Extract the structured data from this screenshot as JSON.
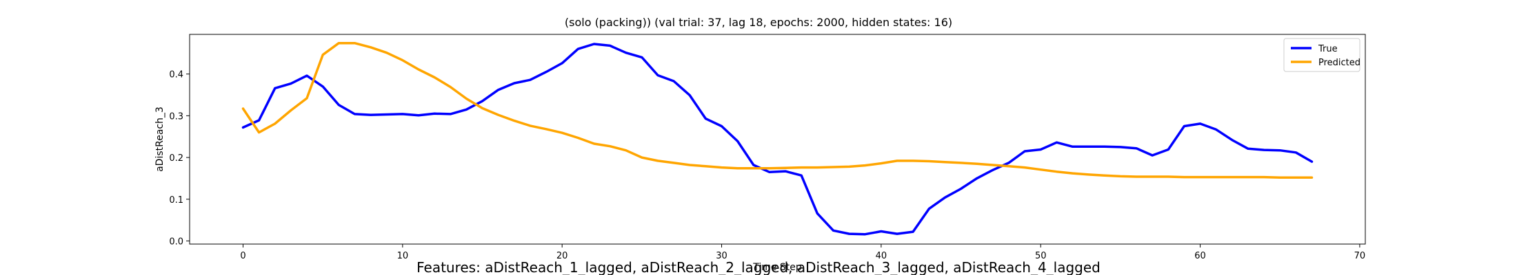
{
  "figure": {
    "footer_text": "Features: aDistReach_1_lagged, aDistReach_2_lagged, aDistReach_3_lagged, aDistReach_4_lagged"
  },
  "chart_data": {
    "type": "line",
    "title": "(solo (packing)) (val trial: 37, lag 18, epochs: 2000, hidden states: 16)",
    "xlabel": "Time Step",
    "ylabel": "aDistReach_3",
    "xlim": [
      -3.35,
      70.35
    ],
    "ylim": [
      -0.0075,
      0.495
    ],
    "xticks": [
      0,
      10,
      20,
      30,
      40,
      50,
      60,
      70
    ],
    "xtick_labels": [
      "0",
      "10",
      "20",
      "30",
      "40",
      "50",
      "60",
      "70"
    ],
    "yticks": [
      0.0,
      0.1,
      0.2,
      0.3,
      0.4
    ],
    "ytick_labels": [
      "0.0",
      "0.1",
      "0.2",
      "0.3",
      "0.4"
    ],
    "grid": false,
    "legend_position": "top-right",
    "x": [
      0,
      1,
      2,
      3,
      4,
      5,
      6,
      7,
      8,
      9,
      10,
      11,
      12,
      13,
      14,
      15,
      16,
      17,
      18,
      19,
      20,
      21,
      22,
      23,
      24,
      25,
      26,
      27,
      28,
      29,
      30,
      31,
      32,
      33,
      34,
      35,
      36,
      37,
      38,
      39,
      40,
      41,
      42,
      43,
      44,
      45,
      46,
      47,
      48,
      49,
      50,
      51,
      52,
      53,
      54,
      55,
      56,
      57,
      58,
      59,
      60,
      61,
      62,
      63,
      64,
      65,
      66,
      67
    ],
    "series": [
      {
        "name": "True",
        "color": "#0000ff",
        "values": [
          0.272,
          0.289,
          0.366,
          0.377,
          0.396,
          0.37,
          0.326,
          0.304,
          0.302,
          0.303,
          0.304,
          0.301,
          0.305,
          0.304,
          0.315,
          0.335,
          0.362,
          0.378,
          0.386,
          0.405,
          0.426,
          0.46,
          0.472,
          0.468,
          0.451,
          0.44,
          0.397,
          0.383,
          0.349,
          0.293,
          0.275,
          0.239,
          0.182,
          0.165,
          0.167,
          0.157,
          0.066,
          0.025,
          0.017,
          0.016,
          0.023,
          0.017,
          0.022,
          0.077,
          0.104,
          0.125,
          0.15,
          0.17,
          0.187,
          0.215,
          0.219,
          0.236,
          0.226,
          0.226,
          0.226,
          0.225,
          0.222,
          0.205,
          0.219,
          0.275,
          0.281,
          0.267,
          0.242,
          0.221,
          0.218,
          0.217,
          0.212,
          0.19
        ]
      },
      {
        "name": "Predicted",
        "color": "#ffa500",
        "values": [
          0.317,
          0.26,
          0.281,
          0.313,
          0.342,
          0.446,
          0.474,
          0.474,
          0.464,
          0.451,
          0.433,
          0.411,
          0.392,
          0.369,
          0.341,
          0.318,
          0.302,
          0.288,
          0.276,
          0.268,
          0.259,
          0.247,
          0.233,
          0.227,
          0.217,
          0.2,
          0.192,
          0.187,
          0.182,
          0.179,
          0.176,
          0.174,
          0.174,
          0.174,
          0.175,
          0.176,
          0.176,
          0.177,
          0.178,
          0.181,
          0.186,
          0.192,
          0.192,
          0.191,
          0.189,
          0.187,
          0.185,
          0.182,
          0.179,
          0.176,
          0.171,
          0.166,
          0.162,
          0.159,
          0.157,
          0.155,
          0.154,
          0.154,
          0.154,
          0.153,
          0.153,
          0.153,
          0.153,
          0.153,
          0.153,
          0.152,
          0.152,
          0.152
        ]
      }
    ]
  }
}
